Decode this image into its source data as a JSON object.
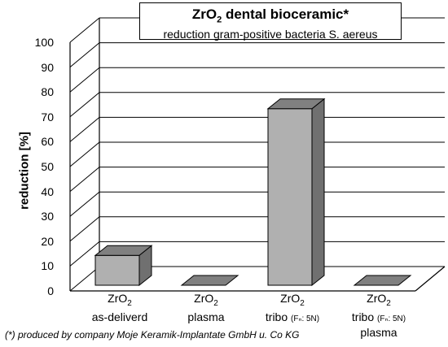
{
  "chart_data": {
    "type": "bar",
    "title_prefix": "ZrO",
    "title_sub": "2",
    "title_rest": " dental bioceramic*",
    "subtitle": "reduction gram-positive bacteria S. aereus",
    "ylabel": "reduction [%]",
    "ylim": [
      0,
      100
    ],
    "yticks": [
      "0",
      "10",
      "20",
      "30",
      "40",
      "50",
      "60",
      "70",
      "80",
      "90",
      "100"
    ],
    "categories": [
      {
        "line1": "ZrO",
        "sub": "2",
        "line2": "as-deliverd",
        "line3": ""
      },
      {
        "line1": "ZrO",
        "sub": "2",
        "line2": "plasma",
        "line3": ""
      },
      {
        "line1": "ZrO",
        "sub": "2",
        "line2": "tribo ",
        "small": "(Fₙ: 5N)",
        "line3": ""
      },
      {
        "line1": "ZrO",
        "sub": "2",
        "line2": "tribo ",
        "small": "(Fₙ: 5N)",
        "line3": "plasma"
      }
    ],
    "values": [
      12,
      0,
      71,
      0
    ],
    "grid": true,
    "colors": {
      "bar_front": "#b0b0b0",
      "bar_side": "#707070",
      "bar_top": "#808080"
    }
  },
  "footnote": "(*) produced by company Moje Keramik-Implantate GmbH u. Co KG"
}
